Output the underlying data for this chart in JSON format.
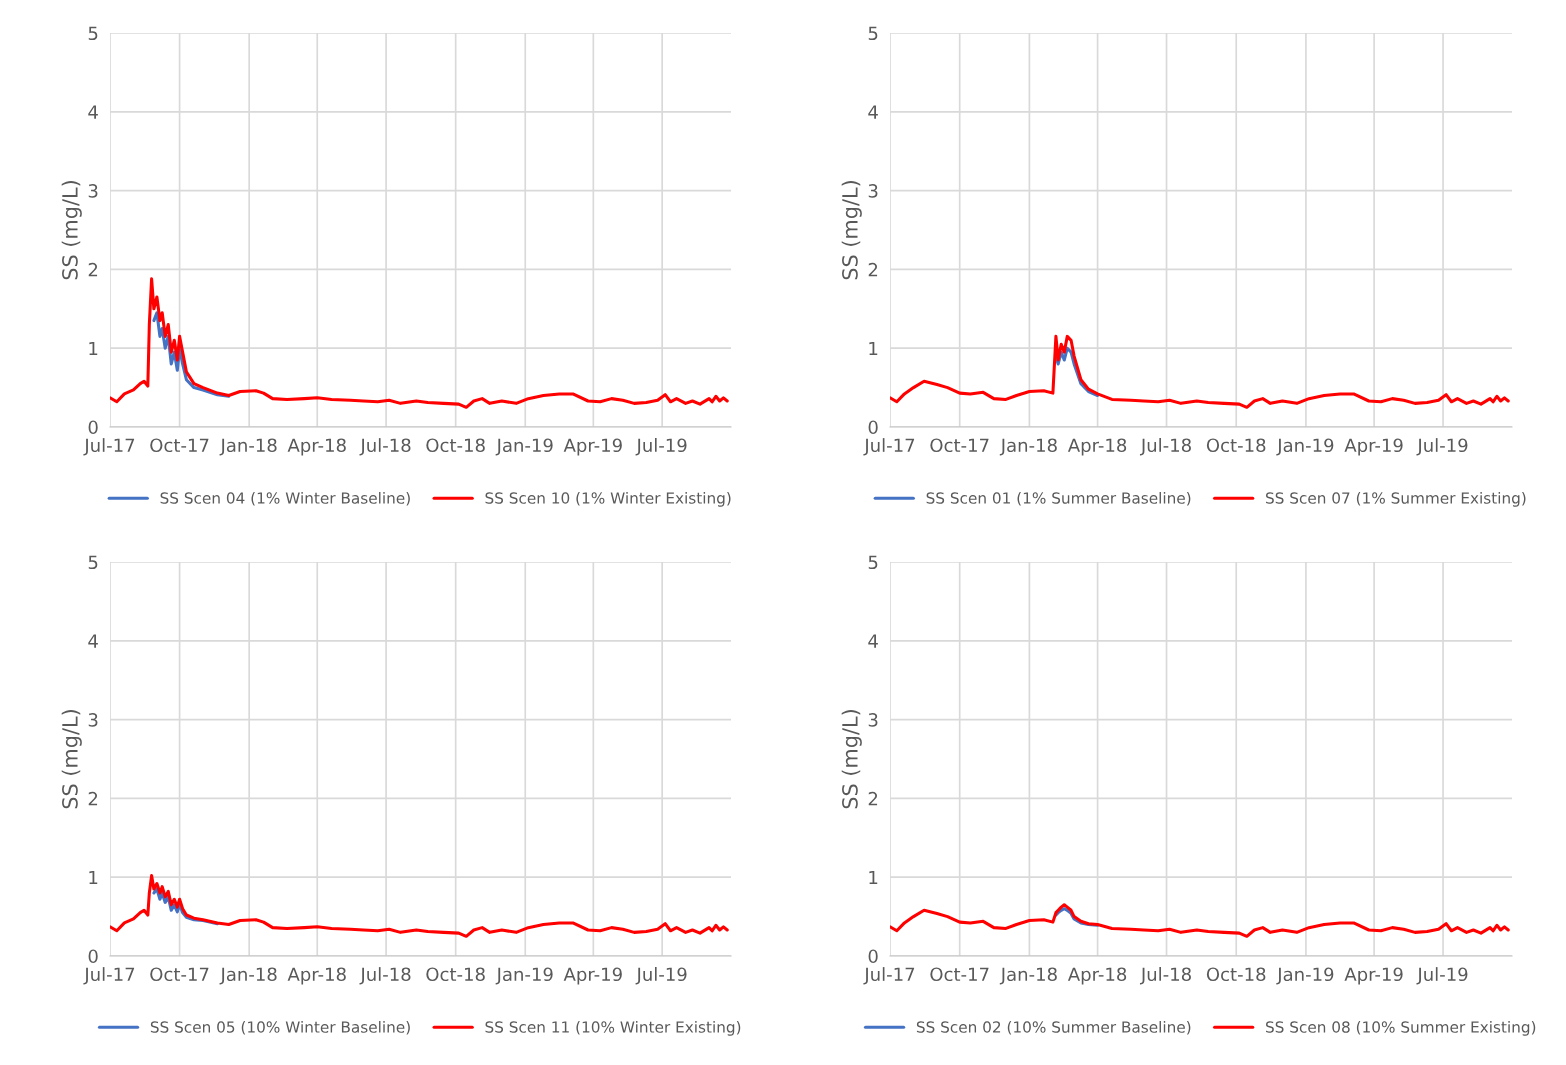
{
  "chart_data": [
    {
      "type": "line",
      "ylabel": "SS (mg/L)",
      "xlim": [
        "2017-07-01",
        "2019-09-30"
      ],
      "ylim": [
        0,
        5
      ],
      "yticks": [
        0,
        1,
        2,
        3,
        4,
        5
      ],
      "grid": true,
      "legend": "bottom",
      "xticks": [
        {
          "value": "2017-07-01",
          "label": "Jul-17"
        },
        {
          "value": "2017-10-01",
          "label": "Oct-17"
        },
        {
          "value": "2018-01-01",
          "label": "Jan-18"
        },
        {
          "value": "2018-04-01",
          "label": "Apr-18"
        },
        {
          "value": "2018-07-01",
          "label": "Jul-18"
        },
        {
          "value": "2018-10-01",
          "label": "Oct-18"
        },
        {
          "value": "2019-01-01",
          "label": "Jan-19"
        },
        {
          "value": "2019-04-01",
          "label": "Apr-19"
        },
        {
          "value": "2019-07-01",
          "label": "Jul-19"
        }
      ],
      "x": [
        "2017-07-01",
        "2017-07-10",
        "2017-07-20",
        "2017-08-01",
        "2017-08-10",
        "2017-08-15",
        "2017-08-20",
        "2017-08-22",
        "2017-08-25",
        "2017-08-28",
        "2017-09-01",
        "2017-09-05",
        "2017-09-08",
        "2017-09-12",
        "2017-09-16",
        "2017-09-20",
        "2017-09-24",
        "2017-09-28",
        "2017-10-01",
        "2017-10-05",
        "2017-10-10",
        "2017-10-20",
        "2017-11-01",
        "2017-11-20",
        "2017-12-05",
        "2017-12-20",
        "2018-01-10",
        "2018-01-20",
        "2018-02-01",
        "2018-02-20",
        "2018-03-15",
        "2018-04-01",
        "2018-04-20",
        "2018-05-15",
        "2018-06-01",
        "2018-06-20",
        "2018-07-05",
        "2018-07-20",
        "2018-08-10",
        "2018-08-25",
        "2018-09-15",
        "2018-10-05",
        "2018-10-15",
        "2018-10-25",
        "2018-11-05",
        "2018-11-15",
        "2018-12-01",
        "2018-12-20",
        "2019-01-05",
        "2019-01-25",
        "2019-02-15",
        "2019-03-05",
        "2019-03-25",
        "2019-04-10",
        "2019-04-25",
        "2019-05-10",
        "2019-05-25",
        "2019-06-10",
        "2019-06-25",
        "2019-07-05",
        "2019-07-12",
        "2019-07-20",
        "2019-08-01",
        "2019-08-10",
        "2019-08-20",
        "2019-09-01",
        "2019-09-05",
        "2019-09-10",
        "2019-09-15",
        "2019-09-20",
        "2019-09-25"
      ],
      "series": [
        {
          "name": "SS Scen 04 (1% Winter Baseline)",
          "color": "#4472c4",
          "values": [
            null,
            null,
            null,
            null,
            null,
            null,
            null,
            null,
            null,
            1.35,
            1.45,
            1.15,
            1.25,
            1.0,
            1.15,
            0.8,
            0.95,
            0.72,
            1.0,
            0.8,
            0.6,
            0.5,
            0.47,
            0.41,
            0.39,
            null,
            null,
            null,
            null,
            null,
            null,
            null,
            null,
            null,
            null,
            null,
            null,
            null,
            null,
            null,
            null,
            null,
            null,
            null,
            null,
            null,
            null,
            null,
            null,
            null,
            null,
            null,
            null,
            null,
            null,
            null,
            null,
            null,
            null,
            null,
            null,
            null,
            null,
            null,
            null,
            null,
            null,
            null,
            null,
            null,
            null
          ]
        },
        {
          "name": "SS Scen 10 (1% Winter Existing)",
          "color": "#ff0000",
          "values": [
            0.37,
            0.32,
            0.42,
            0.47,
            0.55,
            0.58,
            0.52,
            1.3,
            1.88,
            1.5,
            1.65,
            1.35,
            1.45,
            1.15,
            1.3,
            0.95,
            1.1,
            0.85,
            1.15,
            0.95,
            0.7,
            0.55,
            0.5,
            0.43,
            0.4,
            0.45,
            0.46,
            0.43,
            0.36,
            0.35,
            0.36,
            0.37,
            0.35,
            0.34,
            0.33,
            0.32,
            0.34,
            0.3,
            0.33,
            0.31,
            0.3,
            0.29,
            0.25,
            0.33,
            0.36,
            0.3,
            0.33,
            0.3,
            0.36,
            0.4,
            0.42,
            0.42,
            0.33,
            0.32,
            0.36,
            0.34,
            0.3,
            0.31,
            0.34,
            0.41,
            0.32,
            0.36,
            0.3,
            0.33,
            0.29,
            0.36,
            0.32,
            0.39,
            0.33,
            0.37,
            0.33
          ]
        }
      ]
    },
    {
      "type": "line",
      "ylabel": "SS (mg/L)",
      "xlim": [
        "2017-07-01",
        "2019-09-30"
      ],
      "ylim": [
        0,
        5
      ],
      "yticks": [
        0,
        1,
        2,
        3,
        4,
        5
      ],
      "grid": true,
      "legend": "bottom",
      "xticks": [
        {
          "value": "2017-07-01",
          "label": "Jul-17"
        },
        {
          "value": "2017-10-01",
          "label": "Oct-17"
        },
        {
          "value": "2018-01-01",
          "label": "Jan-18"
        },
        {
          "value": "2018-04-01",
          "label": "Apr-18"
        },
        {
          "value": "2018-07-01",
          "label": "Jul-18"
        },
        {
          "value": "2018-10-01",
          "label": "Oct-18"
        },
        {
          "value": "2019-01-01",
          "label": "Jan-19"
        },
        {
          "value": "2019-04-01",
          "label": "Apr-19"
        },
        {
          "value": "2019-07-01",
          "label": "Jul-19"
        }
      ],
      "x": [
        "2017-07-01",
        "2017-07-10",
        "2017-07-20",
        "2017-08-01",
        "2017-08-15",
        "2017-09-01",
        "2017-09-15",
        "2017-10-01",
        "2017-10-15",
        "2017-11-01",
        "2017-11-15",
        "2017-12-01",
        "2017-12-15",
        "2018-01-01",
        "2018-01-20",
        "2018-02-01",
        "2018-02-05",
        "2018-02-08",
        "2018-02-12",
        "2018-02-16",
        "2018-02-20",
        "2018-02-25",
        "2018-03-01",
        "2018-03-10",
        "2018-03-20",
        "2018-04-01",
        "2018-04-20",
        "2018-05-15",
        "2018-06-01",
        "2018-06-20",
        "2018-07-05",
        "2018-07-20",
        "2018-08-10",
        "2018-08-25",
        "2018-09-15",
        "2018-10-05",
        "2018-10-15",
        "2018-10-25",
        "2018-11-05",
        "2018-11-15",
        "2018-12-01",
        "2018-12-20",
        "2019-01-05",
        "2019-01-25",
        "2019-02-15",
        "2019-03-05",
        "2019-03-25",
        "2019-04-10",
        "2019-04-25",
        "2019-05-10",
        "2019-05-25",
        "2019-06-10",
        "2019-06-25",
        "2019-07-05",
        "2019-07-12",
        "2019-07-20",
        "2019-08-01",
        "2019-08-10",
        "2019-08-20",
        "2019-09-01",
        "2019-09-05",
        "2019-09-10",
        "2019-09-15",
        "2019-09-20",
        "2019-09-25"
      ],
      "series": [
        {
          "name": "SS Scen 01 (1% Summer Baseline)",
          "color": "#4472c4",
          "values": [
            null,
            null,
            null,
            null,
            null,
            null,
            null,
            null,
            null,
            null,
            null,
            null,
            null,
            null,
            null,
            null,
            0.9,
            0.8,
            0.95,
            0.85,
            1.0,
            0.95,
            0.8,
            0.55,
            0.45,
            0.4,
            null,
            null,
            null,
            null,
            null,
            null,
            null,
            null,
            null,
            null,
            null,
            null,
            null,
            null,
            null,
            null,
            null,
            null,
            null,
            null,
            null,
            null,
            null,
            null,
            null,
            null,
            null,
            null,
            null,
            null,
            null,
            null,
            null,
            null,
            null,
            null,
            null,
            null,
            null
          ]
        },
        {
          "name": "SS Scen 07 (1% Summer Existing)",
          "color": "#ff0000",
          "values": [
            0.37,
            0.32,
            0.42,
            0.5,
            0.58,
            0.54,
            0.5,
            0.43,
            0.42,
            0.44,
            0.36,
            0.35,
            0.4,
            0.45,
            0.46,
            0.43,
            1.15,
            0.85,
            1.05,
            0.95,
            1.15,
            1.1,
            0.9,
            0.6,
            0.48,
            0.42,
            0.35,
            0.34,
            0.33,
            0.32,
            0.34,
            0.3,
            0.33,
            0.31,
            0.3,
            0.29,
            0.25,
            0.33,
            0.36,
            0.3,
            0.33,
            0.3,
            0.36,
            0.4,
            0.42,
            0.42,
            0.33,
            0.32,
            0.36,
            0.34,
            0.3,
            0.31,
            0.34,
            0.41,
            0.32,
            0.36,
            0.3,
            0.33,
            0.29,
            0.36,
            0.32,
            0.39,
            0.33,
            0.37,
            0.33
          ]
        }
      ]
    },
    {
      "type": "line",
      "ylabel": "SS (mg/L)",
      "xlim": [
        "2017-07-01",
        "2019-09-30"
      ],
      "ylim": [
        0,
        5
      ],
      "yticks": [
        0,
        1,
        2,
        3,
        4,
        5
      ],
      "grid": true,
      "legend": "bottom",
      "xticks": [
        {
          "value": "2017-07-01",
          "label": "Jul-17"
        },
        {
          "value": "2017-10-01",
          "label": "Oct-17"
        },
        {
          "value": "2018-01-01",
          "label": "Jan-18"
        },
        {
          "value": "2018-04-01",
          "label": "Apr-18"
        },
        {
          "value": "2018-07-01",
          "label": "Jul-18"
        },
        {
          "value": "2018-10-01",
          "label": "Oct-18"
        },
        {
          "value": "2019-01-01",
          "label": "Jan-19"
        },
        {
          "value": "2019-04-01",
          "label": "Apr-19"
        },
        {
          "value": "2019-07-01",
          "label": "Jul-19"
        }
      ],
      "x": [
        "2017-07-01",
        "2017-07-10",
        "2017-07-20",
        "2017-08-01",
        "2017-08-10",
        "2017-08-15",
        "2017-08-20",
        "2017-08-22",
        "2017-08-25",
        "2017-08-28",
        "2017-09-01",
        "2017-09-05",
        "2017-09-08",
        "2017-09-12",
        "2017-09-16",
        "2017-09-20",
        "2017-09-24",
        "2017-09-28",
        "2017-10-01",
        "2017-10-05",
        "2017-10-10",
        "2017-10-20",
        "2017-11-01",
        "2017-11-20",
        "2017-12-05",
        "2017-12-20",
        "2018-01-10",
        "2018-01-20",
        "2018-02-01",
        "2018-02-20",
        "2018-03-15",
        "2018-04-01",
        "2018-04-20",
        "2018-05-15",
        "2018-06-01",
        "2018-06-20",
        "2018-07-05",
        "2018-07-20",
        "2018-08-10",
        "2018-08-25",
        "2018-09-15",
        "2018-10-05",
        "2018-10-15",
        "2018-10-25",
        "2018-11-05",
        "2018-11-15",
        "2018-12-01",
        "2018-12-20",
        "2019-01-05",
        "2019-01-25",
        "2019-02-15",
        "2019-03-05",
        "2019-03-25",
        "2019-04-10",
        "2019-04-25",
        "2019-05-10",
        "2019-05-25",
        "2019-06-10",
        "2019-06-25",
        "2019-07-05",
        "2019-07-12",
        "2019-07-20",
        "2019-08-01",
        "2019-08-10",
        "2019-08-20",
        "2019-09-01",
        "2019-09-05",
        "2019-09-10",
        "2019-09-15",
        "2019-09-20",
        "2019-09-25"
      ],
      "series": [
        {
          "name": "SS Scen 05 (10% Winter Baseline)",
          "color": "#4472c4",
          "values": [
            null,
            null,
            null,
            null,
            null,
            null,
            null,
            null,
            null,
            0.8,
            0.85,
            0.72,
            0.8,
            0.68,
            0.75,
            0.58,
            0.65,
            0.56,
            0.66,
            0.55,
            0.49,
            0.46,
            0.45,
            0.41,
            null,
            null,
            null,
            null,
            null,
            null,
            null,
            null,
            null,
            null,
            null,
            null,
            null,
            null,
            null,
            null,
            null,
            null,
            null,
            null,
            null,
            null,
            null,
            null,
            null,
            null,
            null,
            null,
            null,
            null,
            null,
            null,
            null,
            null,
            null,
            null,
            null,
            null,
            null,
            null,
            null,
            null,
            null,
            null,
            null,
            null,
            null
          ]
        },
        {
          "name": "SS Scen 11 (10% Winter Existing)",
          "color": "#ff0000",
          "values": [
            0.37,
            0.32,
            0.42,
            0.47,
            0.55,
            0.58,
            0.52,
            0.8,
            1.02,
            0.85,
            0.92,
            0.8,
            0.88,
            0.75,
            0.82,
            0.65,
            0.72,
            0.62,
            0.72,
            0.6,
            0.52,
            0.48,
            0.46,
            0.42,
            0.4,
            0.45,
            0.46,
            0.43,
            0.36,
            0.35,
            0.36,
            0.37,
            0.35,
            0.34,
            0.33,
            0.32,
            0.34,
            0.3,
            0.33,
            0.31,
            0.3,
            0.29,
            0.25,
            0.33,
            0.36,
            0.3,
            0.33,
            0.3,
            0.36,
            0.4,
            0.42,
            0.42,
            0.33,
            0.32,
            0.36,
            0.34,
            0.3,
            0.31,
            0.34,
            0.41,
            0.32,
            0.36,
            0.3,
            0.33,
            0.29,
            0.36,
            0.32,
            0.39,
            0.33,
            0.37,
            0.33
          ]
        }
      ]
    },
    {
      "type": "line",
      "ylabel": "SS (mg/L)",
      "xlim": [
        "2017-07-01",
        "2019-09-30"
      ],
      "ylim": [
        0,
        5
      ],
      "yticks": [
        0,
        1,
        2,
        3,
        4,
        5
      ],
      "grid": true,
      "legend": "bottom",
      "xticks": [
        {
          "value": "2017-07-01",
          "label": "Jul-17"
        },
        {
          "value": "2017-10-01",
          "label": "Oct-17"
        },
        {
          "value": "2018-01-01",
          "label": "Jan-18"
        },
        {
          "value": "2018-04-01",
          "label": "Apr-18"
        },
        {
          "value": "2018-07-01",
          "label": "Jul-18"
        },
        {
          "value": "2018-10-01",
          "label": "Oct-18"
        },
        {
          "value": "2019-01-01",
          "label": "Jan-19"
        },
        {
          "value": "2019-04-01",
          "label": "Apr-19"
        },
        {
          "value": "2019-07-01",
          "label": "Jul-19"
        }
      ],
      "x": [
        "2017-07-01",
        "2017-07-10",
        "2017-07-20",
        "2017-08-01",
        "2017-08-15",
        "2017-09-01",
        "2017-09-15",
        "2017-10-01",
        "2017-10-15",
        "2017-11-01",
        "2017-11-15",
        "2017-12-01",
        "2017-12-15",
        "2018-01-01",
        "2018-01-20",
        "2018-02-01",
        "2018-02-05",
        "2018-02-08",
        "2018-02-12",
        "2018-02-16",
        "2018-02-20",
        "2018-02-25",
        "2018-03-01",
        "2018-03-10",
        "2018-03-20",
        "2018-04-01",
        "2018-04-20",
        "2018-05-15",
        "2018-06-01",
        "2018-06-20",
        "2018-07-05",
        "2018-07-20",
        "2018-08-10",
        "2018-08-25",
        "2018-09-15",
        "2018-10-05",
        "2018-10-15",
        "2018-10-25",
        "2018-11-05",
        "2018-11-15",
        "2018-12-01",
        "2018-12-20",
        "2019-01-05",
        "2019-01-25",
        "2019-02-15",
        "2019-03-05",
        "2019-03-25",
        "2019-04-10",
        "2019-04-25",
        "2019-05-10",
        "2019-05-25",
        "2019-06-10",
        "2019-06-25",
        "2019-07-05",
        "2019-07-12",
        "2019-07-20",
        "2019-08-01",
        "2019-08-10",
        "2019-08-20",
        "2019-09-01",
        "2019-09-05",
        "2019-09-10",
        "2019-09-15",
        "2019-09-20",
        "2019-09-25"
      ],
      "series": [
        {
          "name": "SS Scen 02 (10% Summer Baseline)",
          "color": "#4472c4",
          "values": [
            null,
            null,
            null,
            null,
            null,
            null,
            null,
            null,
            null,
            null,
            null,
            null,
            null,
            null,
            null,
            null,
            0.52,
            0.55,
            0.58,
            0.6,
            0.58,
            0.54,
            0.47,
            0.42,
            0.4,
            0.39,
            null,
            null,
            null,
            null,
            null,
            null,
            null,
            null,
            null,
            null,
            null,
            null,
            null,
            null,
            null,
            null,
            null,
            null,
            null,
            null,
            null,
            null,
            null,
            null,
            null,
            null,
            null,
            null,
            null,
            null,
            null,
            null,
            null,
            null,
            null,
            null,
            null,
            null,
            null
          ]
        },
        {
          "name": "SS Scen 08 (10% Summer Existing)",
          "color": "#ff0000",
          "values": [
            0.37,
            0.32,
            0.42,
            0.5,
            0.58,
            0.54,
            0.5,
            0.43,
            0.42,
            0.44,
            0.36,
            0.35,
            0.4,
            0.45,
            0.46,
            0.43,
            0.55,
            0.58,
            0.62,
            0.65,
            0.62,
            0.58,
            0.5,
            0.44,
            0.41,
            0.4,
            0.35,
            0.34,
            0.33,
            0.32,
            0.34,
            0.3,
            0.33,
            0.31,
            0.3,
            0.29,
            0.25,
            0.33,
            0.36,
            0.3,
            0.33,
            0.3,
            0.36,
            0.4,
            0.42,
            0.42,
            0.33,
            0.32,
            0.36,
            0.34,
            0.3,
            0.31,
            0.34,
            0.41,
            0.32,
            0.36,
            0.3,
            0.33,
            0.29,
            0.36,
            0.32,
            0.39,
            0.33,
            0.37,
            0.33
          ]
        }
      ]
    }
  ]
}
